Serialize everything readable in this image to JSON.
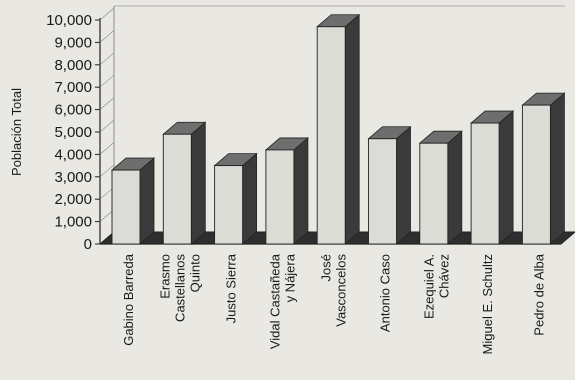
{
  "chart_data": {
    "type": "bar",
    "style": "3d-column",
    "title": "",
    "xlabel": "",
    "ylabel": "Población Total",
    "ylim": [
      0,
      10000
    ],
    "yticks": [
      "0",
      "1,000",
      "2,000",
      "3,000",
      "4,000",
      "5,000",
      "6,000",
      "7,000",
      "8,000",
      "9,000",
      "10,000"
    ],
    "grid": false,
    "categories": [
      "Gabino Barreda",
      "Erasmo Castellanos Quinto",
      "Justo Sierra",
      "Vidal Castañeda y Nájera",
      "José Vasconcelos",
      "Antonio Caso",
      "Ezequiel A. Chávez",
      "Miguel E. Schultz",
      "Pedro de Alba"
    ],
    "category_lines": [
      [
        "Gabino Barreda"
      ],
      [
        "Erasmo",
        "Castellanos",
        "Quinto"
      ],
      [
        "Justo Sierra"
      ],
      [
        "Vidal Castañeda",
        "y Nájera"
      ],
      [
        "José",
        "Vasconcelos"
      ],
      [
        "Antonio Caso"
      ],
      [
        "Ezequiel A.",
        "Chávez"
      ],
      [
        "Miguel E. Schultz"
      ],
      [
        "Pedro de Alba"
      ]
    ],
    "values": [
      3300,
      4900,
      3500,
      4200,
      9700,
      4700,
      4500,
      5400,
      6200
    ],
    "colors": {
      "bar_front": "#dcdcd6",
      "bar_side": "#3a3a3a",
      "bar_top": "#6e6e6e",
      "bar_outline": "#222222",
      "axis": "#222222",
      "floor": "#2e2e2e"
    }
  }
}
